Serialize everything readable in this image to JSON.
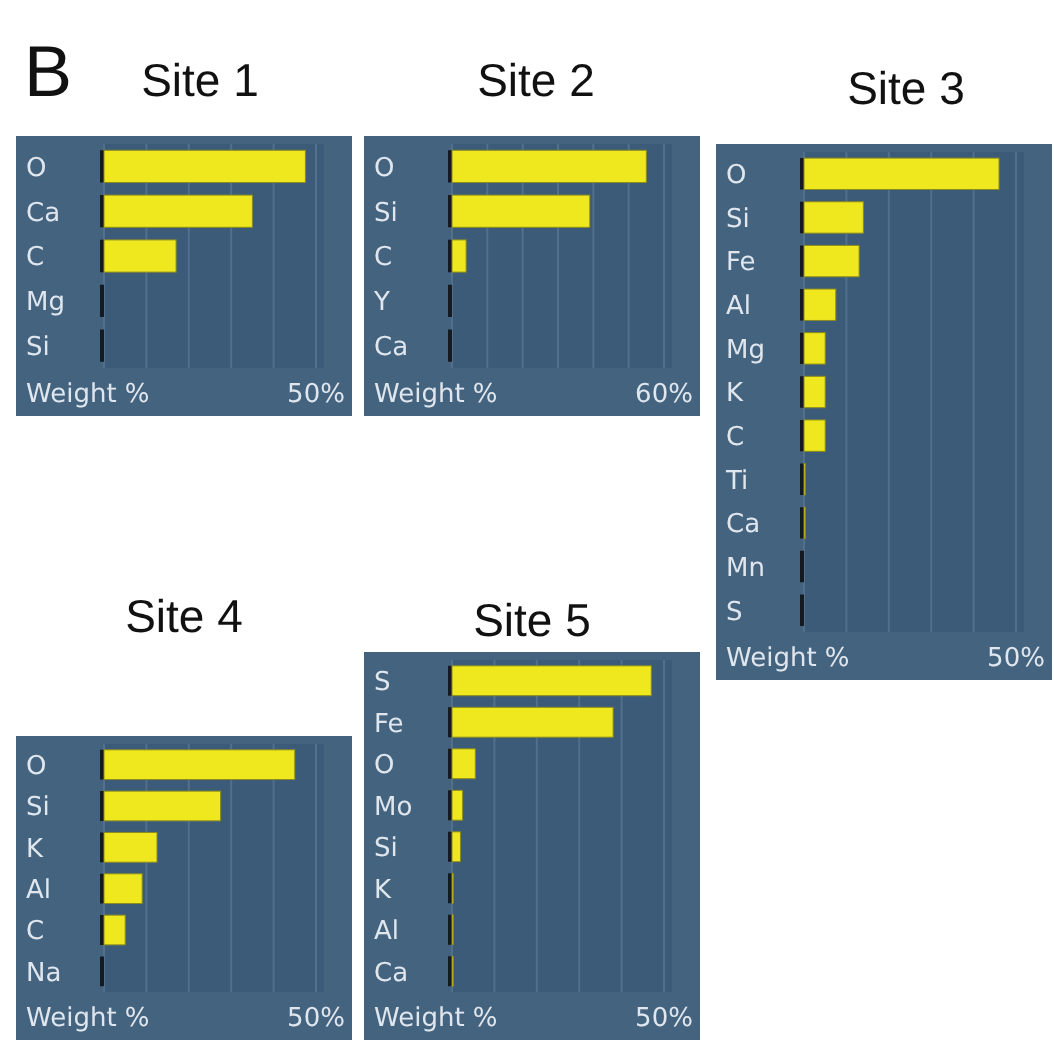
{
  "chart_data": [
    {
      "type": "bar",
      "orientation": "horizontal",
      "title": "Site 1",
      "xlabel": "Weight %",
      "annotations": [
        "B"
      ],
      "categories": [
        "O",
        "Ca",
        "C",
        "Mg",
        "Si"
      ],
      "values": [
        47.5,
        35,
        17,
        0,
        0
      ],
      "color": "#f0e81e",
      "xlim": [
        0,
        50
      ],
      "xticks": [
        {
          "value": 0,
          "label": null
        },
        {
          "value": 10,
          "label": null
        },
        {
          "value": 20,
          "label": null
        },
        {
          "value": 30,
          "label": null
        },
        {
          "value": 40,
          "label": null
        },
        {
          "value": 50,
          "label": "50%"
        }
      ],
      "grid": "x"
    },
    {
      "type": "bar",
      "orientation": "horizontal",
      "title": "Site 2",
      "xlabel": "Weight %",
      "categories": [
        "O",
        "Si",
        "C",
        "Y",
        "Ca"
      ],
      "values": [
        55,
        39,
        4,
        0,
        0
      ],
      "color": "#f0e81e",
      "xlim": [
        0,
        60
      ],
      "xticks": [
        {
          "value": 0,
          "label": null
        },
        {
          "value": 10,
          "label": null
        },
        {
          "value": 20,
          "label": null
        },
        {
          "value": 30,
          "label": null
        },
        {
          "value": 40,
          "label": null
        },
        {
          "value": 50,
          "label": null
        },
        {
          "value": 60,
          "label": "60%"
        }
      ],
      "grid": "x"
    },
    {
      "type": "bar",
      "orientation": "horizontal",
      "title": "Site 3",
      "xlabel": "Weight %",
      "categories": [
        "O",
        "Si",
        "Fe",
        "Al",
        "Mg",
        "K",
        "C",
        "Ti",
        "Ca",
        "Mn",
        "S"
      ],
      "values": [
        46,
        14,
        13,
        7.5,
        5,
        5,
        5,
        0.3,
        0.3,
        0,
        0
      ],
      "color": "#f0e81e",
      "xlim": [
        0,
        50
      ],
      "xticks": [
        {
          "value": 0,
          "label": null
        },
        {
          "value": 10,
          "label": null
        },
        {
          "value": 20,
          "label": null
        },
        {
          "value": 30,
          "label": null
        },
        {
          "value": 40,
          "label": null
        },
        {
          "value": 50,
          "label": "50%"
        }
      ],
      "grid": "x"
    },
    {
      "type": "bar",
      "orientation": "horizontal",
      "title": "Site 4",
      "xlabel": "Weight %",
      "categories": [
        "O",
        "Si",
        "K",
        "Al",
        "C",
        "Na"
      ],
      "values": [
        45,
        27.5,
        12.5,
        9,
        5,
        0
      ],
      "color": "#f0e81e",
      "xlim": [
        0,
        50
      ],
      "xticks": [
        {
          "value": 0,
          "label": null
        },
        {
          "value": 10,
          "label": null
        },
        {
          "value": 20,
          "label": null
        },
        {
          "value": 30,
          "label": null
        },
        {
          "value": 40,
          "label": null
        },
        {
          "value": 50,
          "label": "50%"
        }
      ],
      "grid": "x"
    },
    {
      "type": "bar",
      "orientation": "horizontal",
      "title": "Site 5",
      "xlabel": "Weight %",
      "categories": [
        "S",
        "Fe",
        "O",
        "Mo",
        "Si",
        "K",
        "Al",
        "Ca"
      ],
      "values": [
        47,
        38,
        5.5,
        2.5,
        2,
        0.3,
        0.3,
        0.3
      ],
      "color": "#f0e81e",
      "xlim": [
        0,
        50
      ],
      "xticks": [
        {
          "value": 0,
          "label": null
        },
        {
          "value": 10,
          "label": null
        },
        {
          "value": 20,
          "label": null
        },
        {
          "value": 30,
          "label": null
        },
        {
          "value": 40,
          "label": null
        },
        {
          "value": 50,
          "label": "50%"
        }
      ],
      "grid": "x"
    }
  ]
}
